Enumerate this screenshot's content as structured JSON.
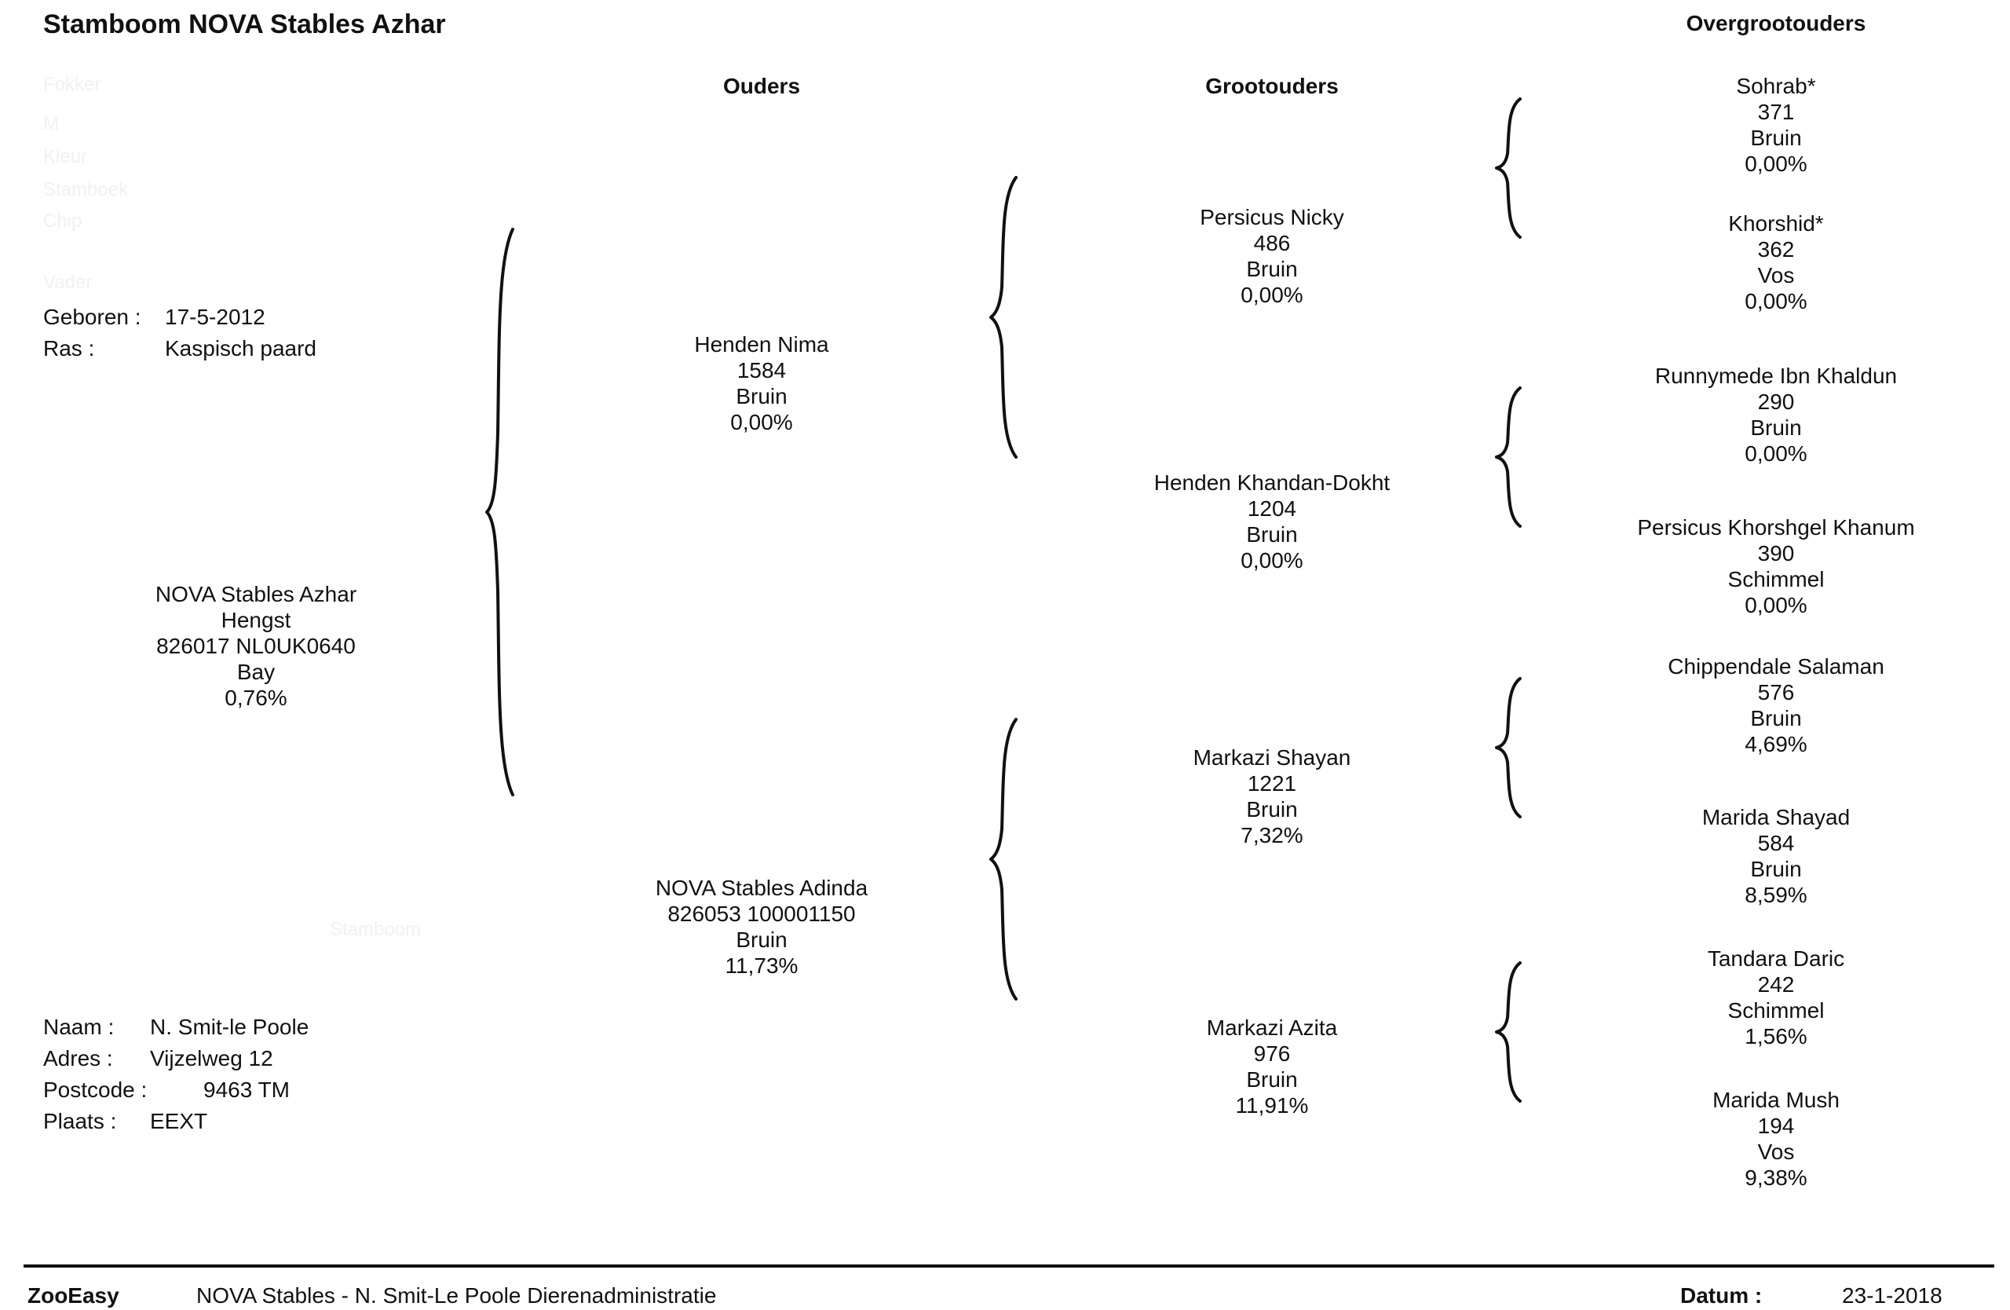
{
  "title": "Stamboom NOVA Stables Azhar",
  "headers": {
    "parents": "Ouders",
    "grandparents": "Grootouders",
    "great_grandparents": "Overgrootouders"
  },
  "details": {
    "born_label": "Geboren :",
    "born_value": "17-5-2012",
    "breed_label": "Ras :",
    "breed_value": "Kaspisch paard"
  },
  "faded": {
    "line1": "Fokker",
    "line2": "M",
    "line3": "Kleur",
    "line4": "Stamboek",
    "line5": "Chip",
    "line6": "Vader",
    "line7": "Stamboom"
  },
  "subject": {
    "name": "NOVA Stables Azhar",
    "sex": "Hengst",
    "ids": "826017 NL0UK0640",
    "color": "Bay",
    "pct": "0,76%"
  },
  "parents": [
    {
      "name": "Henden Nima",
      "number": "1584",
      "color": "Bruin",
      "pct": "0,00%"
    },
    {
      "name": "NOVA Stables Adinda",
      "number": "826053 100001150",
      "color": "Bruin",
      "pct": "11,73%"
    }
  ],
  "grandparents": [
    {
      "name": "Persicus Nicky",
      "number": "486",
      "color": "Bruin",
      "pct": "0,00%"
    },
    {
      "name": "Henden Khandan-Dokht",
      "number": "1204",
      "color": "Bruin",
      "pct": "0,00%"
    },
    {
      "name": "Markazi Shayan",
      "number": "1221",
      "color": "Bruin",
      "pct": "7,32%"
    },
    {
      "name": "Markazi Azita",
      "number": "976",
      "color": "Bruin",
      "pct": "11,91%"
    }
  ],
  "great_grandparents": [
    {
      "name": "Sohrab*",
      "number": "371",
      "color": "Bruin",
      "pct": "0,00%"
    },
    {
      "name": "Khorshid*",
      "number": "362",
      "color": "Vos",
      "pct": "0,00%"
    },
    {
      "name": "Runnymede Ibn Khaldun",
      "number": "290",
      "color": "Bruin",
      "pct": "0,00%"
    },
    {
      "name": "Persicus Khorshgel Khanum",
      "number": "390",
      "color": "Schimmel",
      "pct": "0,00%"
    },
    {
      "name": "Chippendale Salaman",
      "number": "576",
      "color": "Bruin",
      "pct": "4,69%"
    },
    {
      "name": "Marida Shayad",
      "number": "584",
      "color": "Bruin",
      "pct": "8,59%"
    },
    {
      "name": "Tandara Daric",
      "number": "242",
      "color": "Schimmel",
      "pct": "1,56%"
    },
    {
      "name": "Marida Mush",
      "number": "194",
      "color": "Vos",
      "pct": "9,38%"
    }
  ],
  "owner": {
    "name_label": "Naam :",
    "name_value": "N.  Smit-le Poole",
    "address_label": "Adres :",
    "address_value": "Vijzelweg 12",
    "postcode_label": "Postcode :",
    "postcode_value": "9463 TM",
    "place_label": "Plaats :",
    "place_value": "EEXT"
  },
  "footer": {
    "brand": "ZooEasy",
    "org": "NOVA Stables - N. Smit-Le Poole Dierenadministratie",
    "date_label": "Datum :",
    "date_value": "23-1-2018"
  }
}
